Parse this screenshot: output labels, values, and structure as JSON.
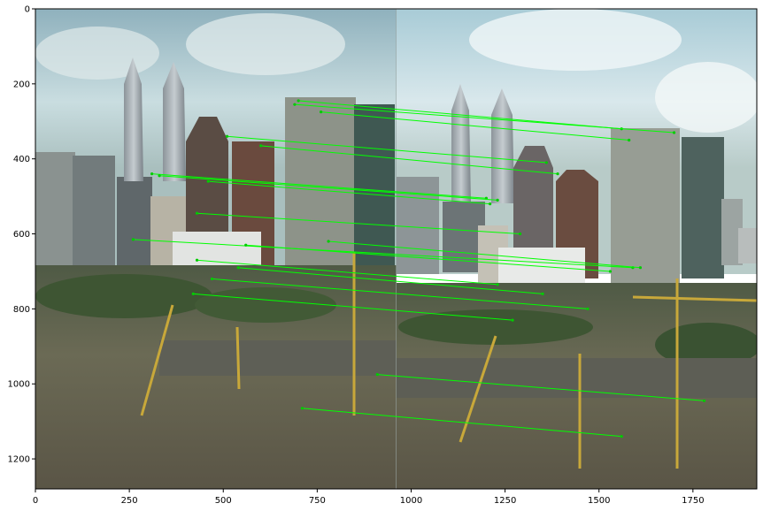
{
  "chart_data": {
    "type": "image-with-keypoint-matches",
    "xlim": [
      0,
      1920
    ],
    "ylim": [
      1280,
      0
    ],
    "x_ticks": [
      0,
      250,
      500,
      750,
      1000,
      1250,
      1500,
      1750
    ],
    "y_ticks": [
      0,
      200,
      400,
      600,
      800,
      1000,
      1200
    ],
    "x_tick_labels": [
      "0",
      "250",
      "500",
      "750",
      "1000",
      "1250",
      "1500",
      "1750"
    ],
    "y_tick_labels": [
      "0",
      "200",
      "400",
      "600",
      "800",
      "1000",
      "1200"
    ],
    "image_seam_x": 960,
    "match_line_color": "#00ff00",
    "match_point_color": "#00cc00",
    "matches": [
      [
        700,
        245,
        1560,
        320
      ],
      [
        690,
        255,
        1700,
        330
      ],
      [
        760,
        275,
        1580,
        350
      ],
      [
        510,
        340,
        1360,
        410
      ],
      [
        600,
        365,
        1390,
        440
      ],
      [
        310,
        440,
        1200,
        505
      ],
      [
        330,
        445,
        1230,
        510
      ],
      [
        460,
        460,
        1210,
        520
      ],
      [
        430,
        545,
        1290,
        600
      ],
      [
        260,
        615,
        1590,
        690
      ],
      [
        560,
        630,
        1530,
        700
      ],
      [
        430,
        670,
        1230,
        735
      ],
      [
        540,
        690,
        1350,
        760
      ],
      [
        470,
        720,
        1470,
        800
      ],
      [
        420,
        760,
        1270,
        830
      ],
      [
        910,
        975,
        1780,
        1045
      ],
      [
        710,
        1065,
        1560,
        1140
      ],
      [
        780,
        620,
        1610,
        690
      ]
    ]
  }
}
